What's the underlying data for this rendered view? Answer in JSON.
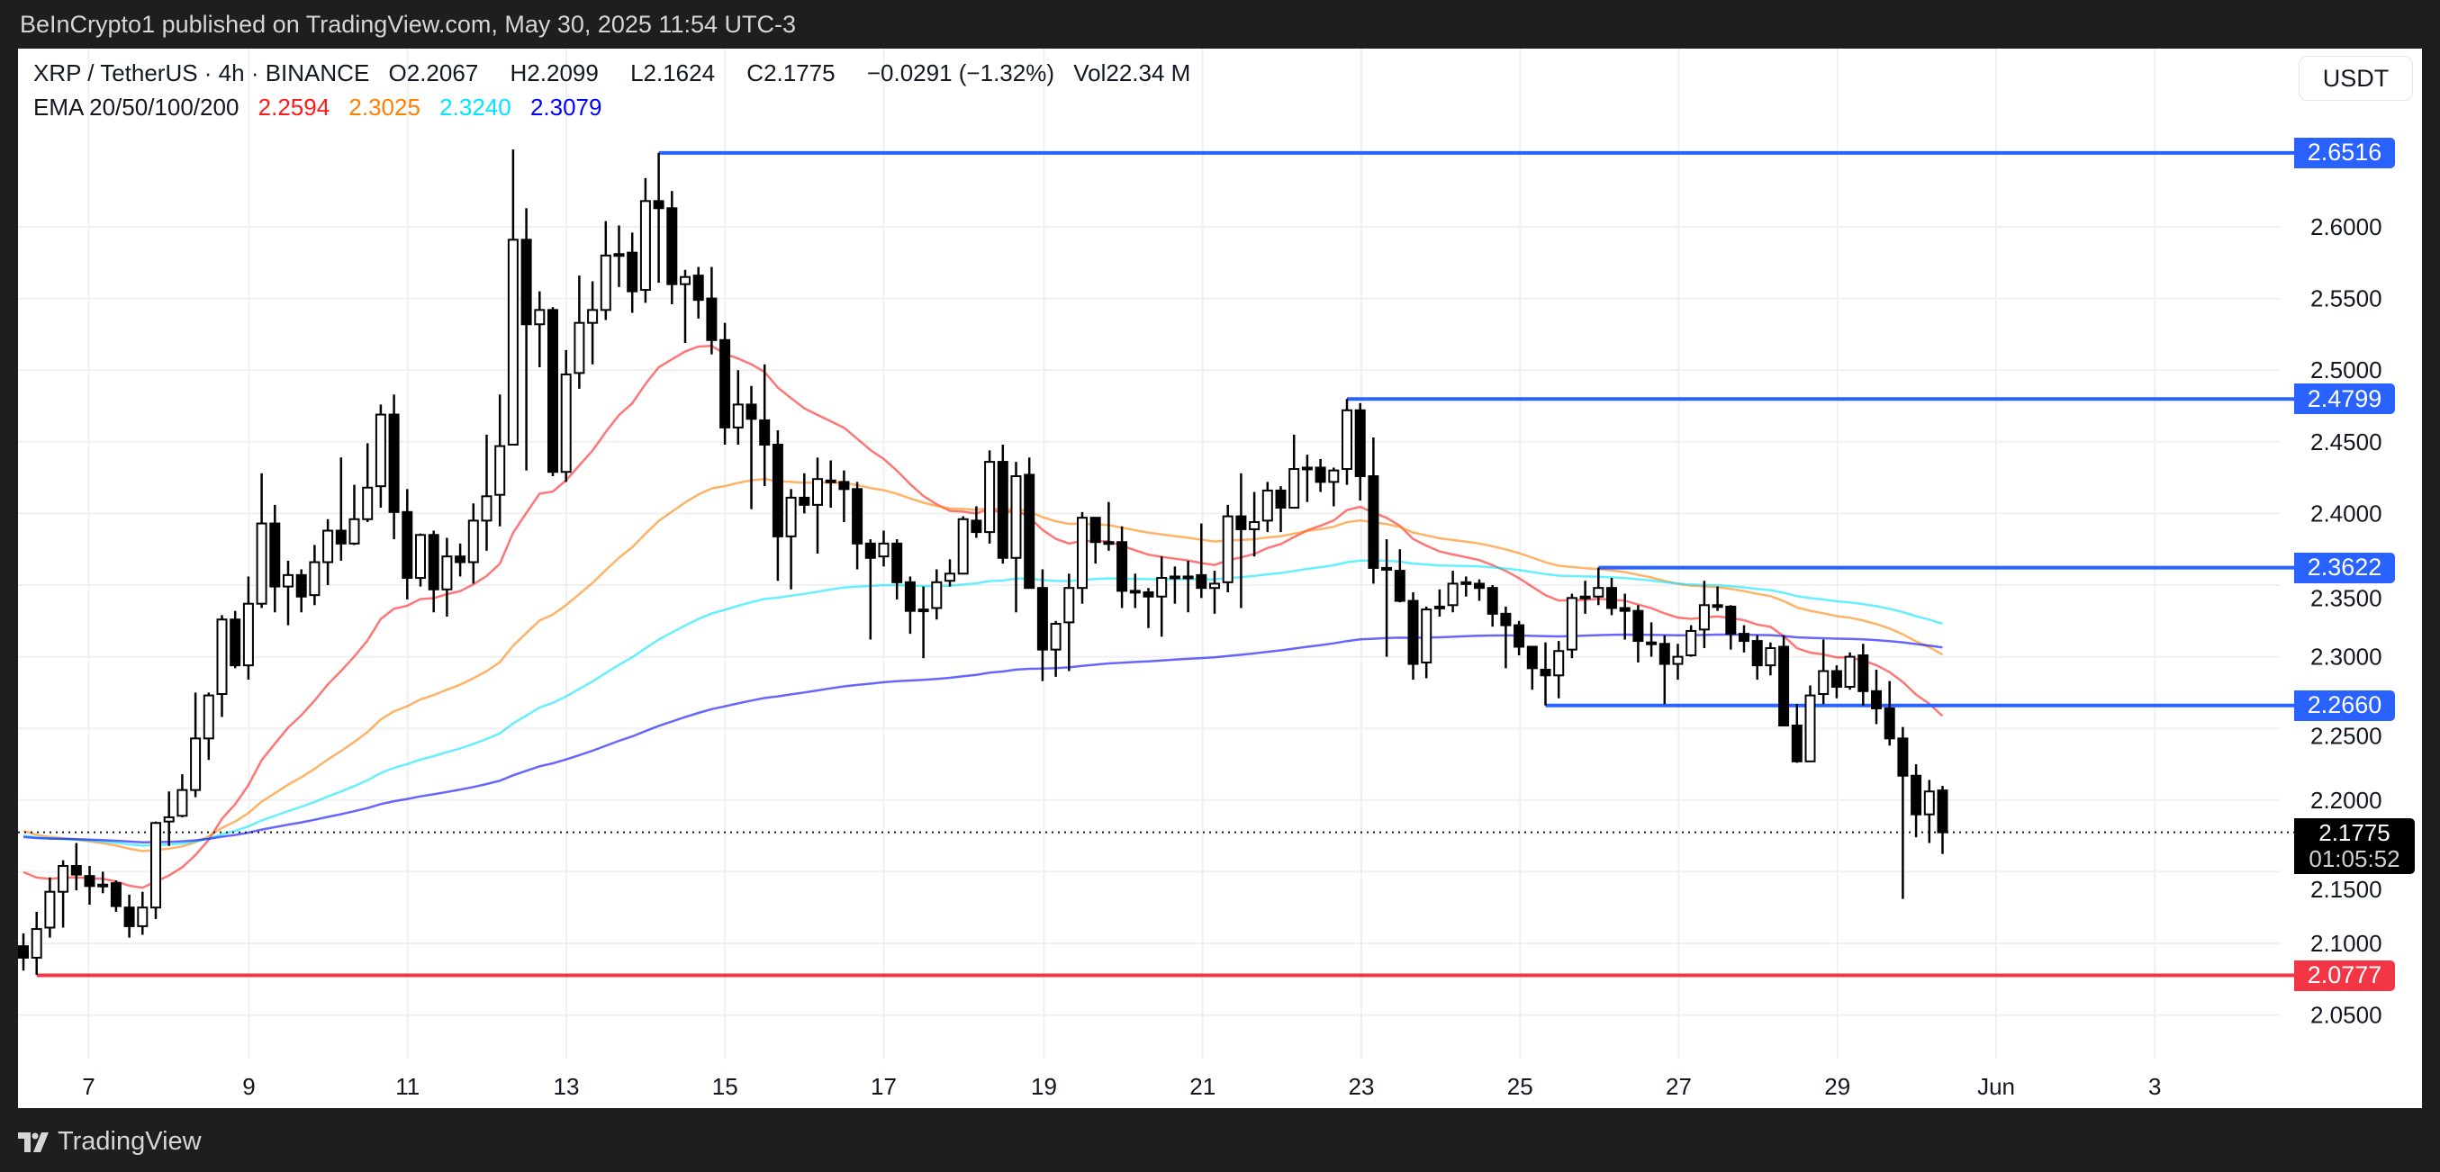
{
  "header": {
    "published": "BeInCrypto1 published on TradingView.com, May 30, 2025 11:54 UTC-3"
  },
  "legend": {
    "symbol": "XRP / TetherUS · 4h · BINANCE",
    "open_label": "O",
    "open": "2.2067",
    "high_label": "H",
    "high": "2.2099",
    "low_label": "L",
    "low": "2.1624",
    "close_label": "C",
    "close": "2.1775",
    "change": "−0.0291 (−1.32%)",
    "volume_label": "Vol",
    "volume": "22.34 M",
    "ema_label": "EMA 20/50/100/200",
    "ema_values": [
      "2.2594",
      "2.3025",
      "2.3240",
      "2.3079"
    ],
    "ema_colors": [
      "#ff1a1a",
      "#ff8000",
      "#00e5ff",
      "#0000ff"
    ]
  },
  "currency": "USDT",
  "current_price": {
    "value": "2.1775",
    "countdown": "01:05:52"
  },
  "footer": {
    "brand": "TradingView"
  },
  "colors": {
    "level": "#2962ff",
    "support": "#f23645",
    "candle": "#000000",
    "grid": "#f0f0f0"
  },
  "chart_data": {
    "type": "candlestick",
    "interval": "4h",
    "y_ticks": [
      "2.6000",
      "2.5500",
      "2.5000",
      "2.4500",
      "2.4000",
      "2.3500",
      "2.3000",
      "2.2500",
      "2.2000",
      "2.1500",
      "2.1000",
      "2.0500"
    ],
    "x_ticks": [
      "7",
      "9",
      "11",
      "13",
      "15",
      "17",
      "19",
      "21",
      "23",
      "25",
      "27",
      "29",
      "Jun",
      "3"
    ],
    "ylim": [
      2.02,
      2.7
    ],
    "grid": true,
    "ema_periods": [
      20,
      50,
      100,
      200
    ],
    "levels": [
      {
        "price": 2.6516,
        "label": "2.6516",
        "color": "#2962ff",
        "anchor_candle": 48
      },
      {
        "price": 2.4799,
        "label": "2.4799",
        "color": "#2962ff",
        "anchor_candle": 100
      },
      {
        "price": 2.3622,
        "label": "2.3622",
        "color": "#2962ff",
        "anchor_candle": 119
      },
      {
        "price": 2.266,
        "label": "2.2660",
        "color": "#2962ff",
        "anchor_candle": 115
      },
      {
        "price": 2.0777,
        "label": "2.0777",
        "color": "#f23645",
        "anchor_candle": 1
      }
    ],
    "ohlc": [
      [
        2.098,
        2.107,
        2.081,
        2.09
      ],
      [
        2.09,
        2.122,
        2.078,
        2.11
      ],
      [
        2.111,
        2.146,
        2.104,
        2.136
      ],
      [
        2.136,
        2.158,
        2.111,
        2.154
      ],
      [
        2.154,
        2.17,
        2.137,
        2.148
      ],
      [
        2.147,
        2.154,
        2.127,
        2.14
      ],
      [
        2.141,
        2.15,
        2.135,
        2.141
      ],
      [
        2.142,
        2.144,
        2.122,
        2.126
      ],
      [
        2.125,
        2.134,
        2.104,
        2.112
      ],
      [
        2.112,
        2.136,
        2.106,
        2.125
      ],
      [
        2.125,
        2.185,
        2.117,
        2.184
      ],
      [
        2.185,
        2.206,
        2.168,
        2.188
      ],
      [
        2.189,
        2.218,
        2.188,
        2.207
      ],
      [
        2.207,
        2.275,
        2.202,
        2.243
      ],
      [
        2.243,
        2.275,
        2.228,
        2.273
      ],
      [
        2.274,
        2.329,
        2.258,
        2.326
      ],
      [
        2.326,
        2.332,
        2.292,
        2.294
      ],
      [
        2.294,
        2.356,
        2.284,
        2.337
      ],
      [
        2.337,
        2.428,
        2.334,
        2.393
      ],
      [
        2.393,
        2.406,
        2.331,
        2.349
      ],
      [
        2.349,
        2.367,
        2.322,
        2.357
      ],
      [
        2.357,
        2.361,
        2.331,
        2.342
      ],
      [
        2.343,
        2.378,
        2.336,
        2.366
      ],
      [
        2.366,
        2.396,
        2.35,
        2.388
      ],
      [
        2.388,
        2.439,
        2.367,
        2.379
      ],
      [
        2.379,
        2.42,
        2.378,
        2.396
      ],
      [
        2.396,
        2.449,
        2.394,
        2.418
      ],
      [
        2.419,
        2.476,
        2.404,
        2.469
      ],
      [
        2.469,
        2.483,
        2.382,
        2.401
      ],
      [
        2.401,
        2.417,
        2.34,
        2.355
      ],
      [
        2.355,
        2.386,
        2.349,
        2.385
      ],
      [
        2.385,
        2.388,
        2.331,
        2.347
      ],
      [
        2.347,
        2.383,
        2.328,
        2.37
      ],
      [
        2.37,
        2.379,
        2.356,
        2.366
      ],
      [
        2.366,
        2.407,
        2.351,
        2.395
      ],
      [
        2.395,
        2.455,
        2.374,
        2.412
      ],
      [
        2.413,
        2.483,
        2.391,
        2.447
      ],
      [
        2.448,
        2.654,
        2.448,
        2.591
      ],
      [
        2.591,
        2.613,
        2.43,
        2.532
      ],
      [
        2.532,
        2.555,
        2.502,
        2.542
      ],
      [
        2.542,
        2.544,
        2.426,
        2.429
      ],
      [
        2.429,
        2.514,
        2.422,
        2.497
      ],
      [
        2.498,
        2.566,
        2.487,
        2.533
      ],
      [
        2.533,
        2.562,
        2.504,
        2.542
      ],
      [
        2.542,
        2.604,
        2.535,
        2.58
      ],
      [
        2.581,
        2.601,
        2.558,
        2.581
      ],
      [
        2.582,
        2.596,
        2.54,
        2.555
      ],
      [
        2.556,
        2.634,
        2.547,
        2.618
      ],
      [
        2.618,
        2.6516,
        2.561,
        2.613
      ],
      [
        2.613,
        2.625,
        2.546,
        2.56
      ],
      [
        2.56,
        2.57,
        2.519,
        2.565
      ],
      [
        2.566,
        2.572,
        2.536,
        2.549
      ],
      [
        2.55,
        2.572,
        2.511,
        2.521
      ],
      [
        2.521,
        2.533,
        2.448,
        2.46
      ],
      [
        2.46,
        2.5,
        2.448,
        2.476
      ],
      [
        2.476,
        2.489,
        2.403,
        2.466
      ],
      [
        2.465,
        2.504,
        2.419,
        2.448
      ],
      [
        2.448,
        2.458,
        2.353,
        2.384
      ],
      [
        2.384,
        2.417,
        2.347,
        2.411
      ],
      [
        2.411,
        2.428,
        2.4,
        2.406
      ],
      [
        2.406,
        2.439,
        2.372,
        2.424
      ],
      [
        2.423,
        2.437,
        2.404,
        2.423
      ],
      [
        2.422,
        2.43,
        2.394,
        2.417
      ],
      [
        2.417,
        2.422,
        2.361,
        2.379
      ],
      [
        2.379,
        2.382,
        2.312,
        2.369
      ],
      [
        2.37,
        2.388,
        2.363,
        2.379
      ],
      [
        2.379,
        2.382,
        2.34,
        2.352
      ],
      [
        2.352,
        2.356,
        2.316,
        2.332
      ],
      [
        2.333,
        2.349,
        2.299,
        2.333
      ],
      [
        2.334,
        2.361,
        2.326,
        2.352
      ],
      [
        2.353,
        2.368,
        2.349,
        2.358
      ],
      [
        2.358,
        2.398,
        2.358,
        2.396
      ],
      [
        2.395,
        2.405,
        2.383,
        2.387
      ],
      [
        2.387,
        2.444,
        2.379,
        2.436
      ],
      [
        2.436,
        2.448,
        2.365,
        2.369
      ],
      [
        2.369,
        2.436,
        2.331,
        2.426
      ],
      [
        2.427,
        2.439,
        2.348,
        2.348
      ],
      [
        2.348,
        2.361,
        2.283,
        2.305
      ],
      [
        2.305,
        2.325,
        2.286,
        2.323
      ],
      [
        2.324,
        2.358,
        2.29,
        2.348
      ],
      [
        2.348,
        2.401,
        2.337,
        2.397
      ],
      [
        2.397,
        2.397,
        2.365,
        2.38
      ],
      [
        2.38,
        2.408,
        2.374,
        2.38
      ],
      [
        2.38,
        2.391,
        2.334,
        2.346
      ],
      [
        2.346,
        2.358,
        2.334,
        2.346
      ],
      [
        2.345,
        2.348,
        2.32,
        2.342
      ],
      [
        2.342,
        2.37,
        2.314,
        2.355
      ],
      [
        2.356,
        2.363,
        2.337,
        2.356
      ],
      [
        2.356,
        2.367,
        2.331,
        2.356
      ],
      [
        2.357,
        2.393,
        2.341,
        2.348
      ],
      [
        2.348,
        2.36,
        2.33,
        2.351
      ],
      [
        2.352,
        2.406,
        2.345,
        2.398
      ],
      [
        2.398,
        2.428,
        2.334,
        2.389
      ],
      [
        2.389,
        2.415,
        2.37,
        2.394
      ],
      [
        2.395,
        2.422,
        2.387,
        2.416
      ],
      [
        2.416,
        2.419,
        2.387,
        2.404
      ],
      [
        2.404,
        2.455,
        2.404,
        2.431
      ],
      [
        2.432,
        2.441,
        2.408,
        2.432
      ],
      [
        2.432,
        2.438,
        2.415,
        2.422
      ],
      [
        2.422,
        2.432,
        2.405,
        2.43
      ],
      [
        2.431,
        2.4799,
        2.42,
        2.472
      ],
      [
        2.472,
        2.477,
        2.409,
        2.426
      ],
      [
        2.426,
        2.453,
        2.351,
        2.362
      ],
      [
        2.362,
        2.382,
        2.3,
        2.362
      ],
      [
        2.36,
        2.375,
        2.338,
        2.339
      ],
      [
        2.339,
        2.345,
        2.284,
        2.295
      ],
      [
        2.296,
        2.335,
        2.285,
        2.333
      ],
      [
        2.335,
        2.347,
        2.328,
        2.335
      ],
      [
        2.336,
        2.36,
        2.331,
        2.351
      ],
      [
        2.352,
        2.356,
        2.342,
        2.352
      ],
      [
        2.351,
        2.354,
        2.339,
        2.348
      ],
      [
        2.348,
        2.35,
        2.321,
        2.33
      ],
      [
        2.33,
        2.335,
        2.292,
        2.322
      ],
      [
        2.322,
        2.325,
        2.301,
        2.307
      ],
      [
        2.307,
        2.307,
        2.277,
        2.292
      ],
      [
        2.291,
        2.31,
        2.266,
        2.287
      ],
      [
        2.287,
        2.311,
        2.271,
        2.304
      ],
      [
        2.305,
        2.344,
        2.299,
        2.341
      ],
      [
        2.342,
        2.353,
        2.33,
        2.342
      ],
      [
        2.342,
        2.3622,
        2.336,
        2.348
      ],
      [
        2.348,
        2.355,
        2.329,
        2.334
      ],
      [
        2.334,
        2.344,
        2.312,
        2.332
      ],
      [
        2.332,
        2.336,
        2.296,
        2.311
      ],
      [
        2.31,
        2.324,
        2.3,
        2.31
      ],
      [
        2.309,
        2.315,
        2.267,
        2.295
      ],
      [
        2.295,
        2.309,
        2.284,
        2.3
      ],
      [
        2.301,
        2.322,
        2.3,
        2.318
      ],
      [
        2.319,
        2.353,
        2.306,
        2.336
      ],
      [
        2.336,
        2.349,
        2.332,
        2.336
      ],
      [
        2.335,
        2.336,
        2.305,
        2.316
      ],
      [
        2.316,
        2.322,
        2.303,
        2.311
      ],
      [
        2.311,
        2.315,
        2.284,
        2.294
      ],
      [
        2.294,
        2.31,
        2.287,
        2.306
      ],
      [
        2.307,
        2.315,
        2.252,
        2.252
      ],
      [
        2.252,
        2.267,
        2.226,
        2.227
      ],
      [
        2.227,
        2.28,
        2.227,
        2.273
      ],
      [
        2.274,
        2.312,
        2.267,
        2.29
      ],
      [
        2.29,
        2.294,
        2.271,
        2.279
      ],
      [
        2.279,
        2.303,
        2.277,
        2.3
      ],
      [
        2.301,
        2.309,
        2.266,
        2.276
      ],
      [
        2.276,
        2.291,
        2.253,
        2.264
      ],
      [
        2.264,
        2.283,
        2.238,
        2.243
      ],
      [
        2.243,
        2.251,
        2.131,
        2.217
      ],
      [
        2.217,
        2.225,
        2.174,
        2.19
      ],
      [
        2.19,
        2.214,
        2.17,
        2.206
      ],
      [
        2.2067,
        2.2099,
        2.1624,
        2.1775
      ]
    ]
  }
}
